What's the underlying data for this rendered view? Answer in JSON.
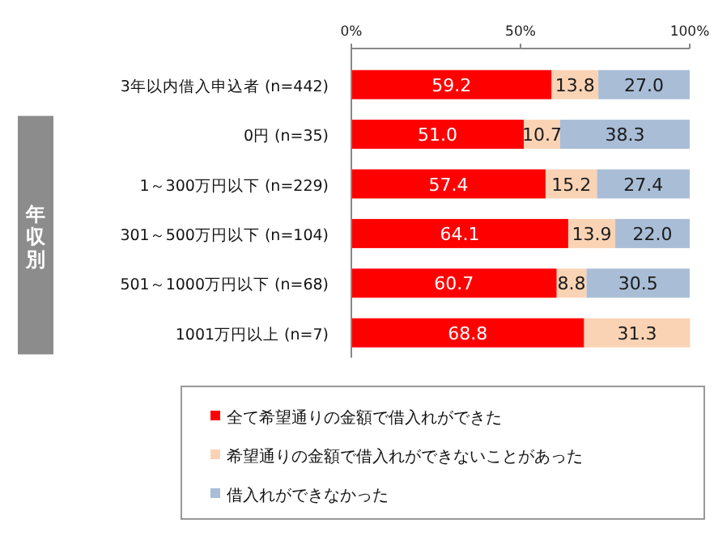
{
  "chart_data": {
    "type": "bar",
    "orientation": "horizontal",
    "stacked": true,
    "legend": "bottom",
    "grid": false,
    "categories": [
      "3年以内借入申込者 (n=442)",
      "0円 (n=35)",
      "1～300万円以下 (n=229)",
      "301～500万円以下 (n=104)",
      "501～1000万円以下 (n=68)",
      "1001万円以上 (n=7)"
    ],
    "xlim": [
      0,
      100
    ],
    "xticks": [
      {
        "value": 0,
        "label": "0%"
      },
      {
        "value": 50,
        "label": "50%"
      },
      {
        "value": 100,
        "label": "100%"
      }
    ],
    "annotations": [
      "年収別"
    ],
    "series": [
      {
        "name": "全て希望通りの金額で借入れができた",
        "color": "#ff0000",
        "values": [
          59.2,
          51.0,
          57.4,
          64.1,
          60.7,
          68.8
        ],
        "value_labels": [
          "59.2",
          "51.0",
          "57.4",
          "64.1",
          "60.7",
          "68.8"
        ]
      },
      {
        "name": "希望通りの金額で借入れができないことがあった",
        "color": "#fad3b5",
        "values": [
          13.8,
          10.7,
          15.2,
          13.9,
          8.8,
          31.3
        ],
        "value_labels": [
          "13.8",
          "10.7",
          "15.2",
          "13.9",
          "8.8",
          "31.3"
        ]
      },
      {
        "name": "借入れができなかった",
        "color": "#a9bdd6",
        "values": [
          27.0,
          38.3,
          27.4,
          22.0,
          30.5,
          null
        ],
        "value_labels": [
          "27.0",
          "38.3",
          "27.4",
          "22.0",
          "30.5",
          null
        ]
      }
    ]
  }
}
